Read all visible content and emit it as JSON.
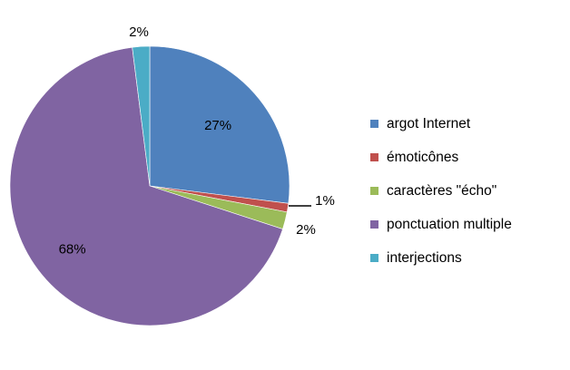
{
  "chart_data": {
    "type": "pie",
    "title": "",
    "series": [
      {
        "values": [
          27,
          1,
          2,
          68,
          2
        ],
        "labels": [
          "27%",
          "1%",
          "2%",
          "68%",
          "2%"
        ]
      }
    ],
    "categories": [
      "argot Internet",
      "émoticônes",
      "caractères \"écho\"",
      "ponctuation multiple",
      "interjections"
    ],
    "colors": [
      "#4F81BD",
      "#C0504D",
      "#9BBB59",
      "#8064A2",
      "#4BACC6"
    ],
    "start_angle_deg": 0,
    "direction": "clockwise",
    "legend_position": "right",
    "background": "#FFFFFF"
  }
}
